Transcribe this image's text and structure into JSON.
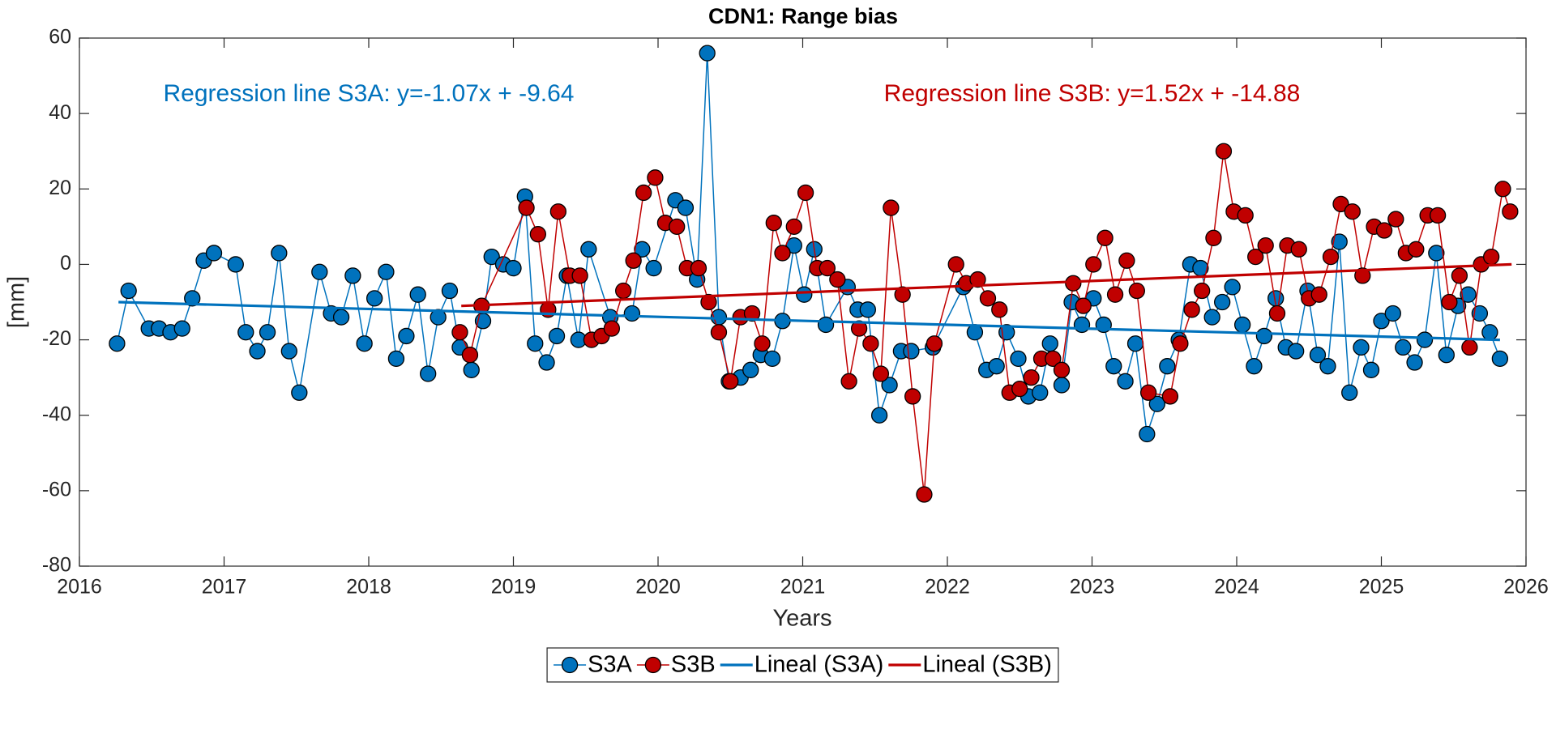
{
  "chart_data": {
    "type": "line",
    "title": "CDN1: Range bias",
    "xlabel": "Years",
    "ylabel": "[mm]",
    "xlim": [
      2016,
      2026
    ],
    "ylim": [
      -80,
      60
    ],
    "xticks": [
      2016,
      2017,
      2018,
      2019,
      2020,
      2021,
      2022,
      2023,
      2024,
      2025,
      2026
    ],
    "yticks": [
      -80,
      -60,
      -40,
      -20,
      0,
      20,
      40,
      60
    ],
    "grid": false,
    "annotations": [
      {
        "text": "Regression line S3A: y=-1.07x + -9.64",
        "x": 2018.0,
        "y": 45,
        "color": "#0072bd"
      },
      {
        "text": "Regression line S3B: y=1.52x + -14.88",
        "x": 2023.0,
        "y": 45,
        "color": "#c00000"
      }
    ],
    "series": [
      {
        "name": "S3A",
        "color": "#0072bd",
        "marker": true,
        "x": [
          2016.26,
          2016.34,
          2016.48,
          2016.55,
          2016.63,
          2016.71,
          2016.78,
          2016.86,
          2016.93,
          2017.08,
          2017.15,
          2017.23,
          2017.3,
          2017.38,
          2017.45,
          2017.52,
          2017.66,
          2017.74,
          2017.81,
          2017.89,
          2017.97,
          2018.04,
          2018.12,
          2018.19,
          2018.26,
          2018.34,
          2018.41,
          2018.48,
          2018.56,
          2018.63,
          2018.71,
          2018.79,
          2018.85,
          2018.93,
          2019.0,
          2019.08,
          2019.15,
          2019.23,
          2019.3,
          2019.37,
          2019.45,
          2019.52,
          2019.67,
          2019.82,
          2019.89,
          2019.97,
          2020.12,
          2020.19,
          2020.27,
          2020.34,
          2020.42,
          2020.49,
          2020.57,
          2020.64,
          2020.71,
          2020.79,
          2020.86,
          2020.94,
          2021.01,
          2021.08,
          2021.16,
          2021.31,
          2021.38,
          2021.45,
          2021.53,
          2021.6,
          2021.68,
          2021.75,
          2021.9,
          2022.11,
          2022.19,
          2022.27,
          2022.34,
          2022.41,
          2022.49,
          2022.56,
          2022.64,
          2022.71,
          2022.79,
          2022.86,
          2022.93,
          2023.01,
          2023.08,
          2023.15,
          2023.23,
          2023.3,
          2023.38,
          2023.45,
          2023.52,
          2023.6,
          2023.68,
          2023.75,
          2023.83,
          2023.9,
          2023.97,
          2024.04,
          2024.12,
          2024.19,
          2024.27,
          2024.34,
          2024.41,
          2024.49,
          2024.56,
          2024.63,
          2024.71,
          2024.78,
          2024.86,
          2024.93,
          2025.0,
          2025.08,
          2025.15,
          2025.23,
          2025.3,
          2025.38,
          2025.45,
          2025.53,
          2025.6,
          2025.68,
          2025.75,
          2025.82
        ],
        "values": [
          -21,
          -7,
          -17,
          -17,
          -18,
          -17,
          -9,
          1,
          3,
          0,
          -18,
          -23,
          -18,
          3,
          -23,
          -34,
          -2,
          -13,
          -14,
          -3,
          -21,
          -9,
          -2,
          -25,
          -19,
          -8,
          -29,
          -14,
          -7,
          -22,
          -28,
          -15,
          2,
          0,
          -1,
          18,
          -21,
          -26,
          -19,
          -3,
          -20,
          4,
          -14,
          -13,
          4,
          -1,
          17,
          15,
          -4,
          56,
          -14,
          -31,
          -30,
          -28,
          -24,
          -25,
          -15,
          5,
          -8,
          4,
          -16,
          -6,
          -12,
          -12,
          -40,
          -32,
          -23,
          -23,
          -22,
          -6,
          -18,
          -28,
          -27,
          -18,
          -25,
          -35,
          -34,
          -21,
          -32,
          -10,
          -16,
          -9,
          -16,
          -27,
          -31,
          -21,
          -45,
          -37,
          -27,
          -20,
          0,
          -1,
          -14,
          -10,
          -6,
          -16,
          -27,
          -19,
          -9,
          -22,
          -23,
          -7,
          -24,
          -27,
          6,
          -34,
          -22,
          -28,
          -15,
          -13,
          -22,
          -26,
          -20,
          3,
          -24,
          -11,
          -8,
          -13,
          -18,
          -25
        ]
      },
      {
        "name": "S3B",
        "color": "#c00000",
        "marker": true,
        "x": [
          2018.63,
          2018.7,
          2018.78,
          2019.09,
          2019.17,
          2019.24,
          2019.31,
          2019.39,
          2019.46,
          2019.54,
          2019.61,
          2019.68,
          2019.76,
          2019.83,
          2019.9,
          2019.98,
          2020.05,
          2020.13,
          2020.2,
          2020.28,
          2020.35,
          2020.42,
          2020.5,
          2020.57,
          2020.65,
          2020.72,
          2020.8,
          2020.86,
          2020.94,
          2021.02,
          2021.1,
          2021.17,
          2021.24,
          2021.32,
          2021.39,
          2021.47,
          2021.54,
          2021.61,
          2021.69,
          2021.76,
          2021.84,
          2021.91,
          2022.06,
          2022.13,
          2022.21,
          2022.28,
          2022.36,
          2022.43,
          2022.5,
          2022.58,
          2022.65,
          2022.73,
          2022.79,
          2022.87,
          2022.94,
          2023.01,
          2023.09,
          2023.16,
          2023.24,
          2023.31,
          2023.39,
          2023.54,
          2023.61,
          2023.69,
          2023.76,
          2023.84,
          2023.91,
          2023.98,
          2024.06,
          2024.13,
          2024.2,
          2024.28,
          2024.35,
          2024.43,
          2024.5,
          2024.57,
          2024.65,
          2024.72,
          2024.8,
          2024.87,
          2024.95,
          2025.02,
          2025.1,
          2025.17,
          2025.24,
          2025.32,
          2025.39,
          2025.47,
          2025.54,
          2025.61,
          2025.69,
          2025.76,
          2025.84,
          2025.89
        ],
        "values": [
          -18,
          -24,
          -11,
          15,
          8,
          -12,
          14,
          -3,
          -3,
          -20,
          -19,
          -17,
          -7,
          1,
          19,
          23,
          11,
          10,
          -1,
          -1,
          -10,
          -18,
          -31,
          -14,
          -13,
          -21,
          11,
          3,
          10,
          19,
          -1,
          -1,
          -4,
          -31,
          -17,
          -21,
          -29,
          15,
          -8,
          -35,
          -61,
          -21,
          0,
          -5,
          -4,
          -9,
          -12,
          -34,
          -33,
          -30,
          -25,
          -25,
          -28,
          -5,
          -11,
          0,
          7,
          -8,
          1,
          -7,
          -34,
          -35,
          -21,
          -12,
          -7,
          7,
          30,
          14,
          13,
          2,
          5,
          -13,
          5,
          4,
          -9,
          -8,
          2,
          16,
          14,
          -3,
          10,
          9,
          12,
          3,
          4,
          13,
          13,
          -10,
          -3,
          -22,
          0,
          2,
          20,
          14
        ]
      },
      {
        "name": "Lineal (S3A)",
        "color": "#0072bd",
        "marker": false,
        "x": [
          2016.27,
          2025.82
        ],
        "values": [
          -10,
          -20
        ]
      },
      {
        "name": "Lineal (S3B)",
        "color": "#c00000",
        "marker": false,
        "x": [
          2018.64,
          2025.9
        ],
        "values": [
          -11,
          0
        ]
      }
    ]
  }
}
